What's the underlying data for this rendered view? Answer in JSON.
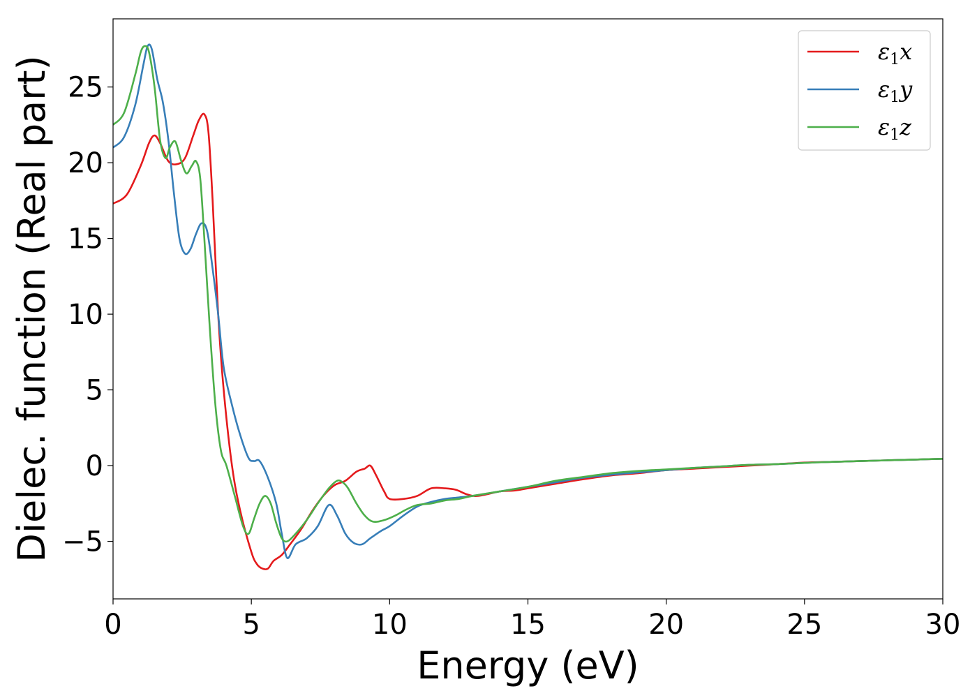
{
  "chart_data": {
    "type": "line",
    "title": "",
    "xlabel": "Energy (eV)",
    "ylabel": "Dielec. function (Real part)",
    "xlim": [
      0,
      30
    ],
    "ylim": [
      -8.8,
      29.5
    ],
    "xticks": [
      0,
      5,
      10,
      15,
      20,
      25,
      30
    ],
    "xtick_labels": [
      "0",
      "5",
      "10",
      "15",
      "20",
      "25",
      "30"
    ],
    "yticks": [
      -5,
      0,
      5,
      10,
      15,
      20,
      25
    ],
    "ytick_labels": [
      "−5",
      "0",
      "5",
      "10",
      "15",
      "20",
      "25"
    ],
    "grid": false,
    "legend_position": "top-right",
    "series": [
      {
        "name": "ε1x",
        "legend_base": "ε",
        "legend_sub": "1",
        "legend_var": "x",
        "color": "#e41a1c",
        "x": [
          0,
          0.5,
          1.0,
          1.3,
          1.5,
          1.7,
          2.0,
          2.3,
          2.6,
          2.9,
          3.1,
          3.3,
          3.45,
          3.6,
          3.8,
          4.0,
          4.3,
          4.6,
          5.0,
          5.2,
          5.4,
          5.6,
          5.8,
          6.1,
          6.4,
          6.8,
          7.2,
          7.6,
          8.0,
          8.4,
          8.8,
          9.1,
          9.3,
          9.5,
          9.8,
          10.0,
          10.5,
          11.0,
          11.5,
          12.0,
          12.4,
          12.8,
          13.2,
          14.0,
          14.5,
          15.0,
          16.0,
          17.0,
          18.0,
          19.0,
          20.0,
          21.0,
          22.0,
          23.0,
          24.0,
          25.0,
          26.0,
          27.0,
          28.0,
          29.0,
          30.0
        ],
        "y": [
          17.3,
          17.9,
          19.8,
          21.3,
          21.8,
          21.3,
          20.1,
          19.9,
          20.3,
          21.8,
          22.8,
          23.2,
          22.0,
          17.5,
          10.0,
          5.0,
          0.0,
          -3.0,
          -5.7,
          -6.5,
          -6.8,
          -6.8,
          -6.3,
          -5.9,
          -5.2,
          -4.2,
          -3.0,
          -2.0,
          -1.3,
          -1.0,
          -0.4,
          -0.2,
          0.0,
          -0.6,
          -1.7,
          -2.2,
          -2.2,
          -2.0,
          -1.5,
          -1.5,
          -1.6,
          -1.9,
          -2.0,
          -1.7,
          -1.65,
          -1.5,
          -1.2,
          -0.9,
          -0.65,
          -0.5,
          -0.3,
          -0.2,
          -0.1,
          0.0,
          0.1,
          0.2,
          0.25,
          0.3,
          0.35,
          0.4,
          0.45
        ]
      },
      {
        "name": "ε1y",
        "legend_base": "ε",
        "legend_sub": "1",
        "legend_var": "y",
        "color": "#377eb8",
        "x": [
          0,
          0.4,
          0.8,
          1.1,
          1.25,
          1.4,
          1.6,
          1.8,
          2.0,
          2.2,
          2.4,
          2.6,
          2.8,
          3.0,
          3.2,
          3.4,
          3.6,
          3.8,
          4.0,
          4.3,
          4.6,
          4.9,
          5.1,
          5.3,
          5.6,
          5.9,
          6.1,
          6.3,
          6.6,
          7.0,
          7.4,
          7.8,
          8.1,
          8.4,
          8.7,
          9.0,
          9.3,
          9.7,
          10.0,
          10.5,
          11.0,
          11.5,
          12.0,
          12.5,
          13.0,
          14.0,
          15.0,
          16.0,
          17.0,
          18.0,
          19.0,
          20.0,
          21.0,
          22.0,
          23.0,
          24.0,
          25.0,
          26.0,
          27.0,
          28.0,
          29.0,
          30.0
        ],
        "y": [
          21.0,
          21.7,
          23.8,
          26.5,
          27.7,
          27.5,
          25.5,
          24.0,
          21.5,
          18.0,
          15.0,
          14.0,
          14.3,
          15.3,
          16.0,
          15.5,
          13.0,
          10.0,
          6.5,
          4.0,
          2.0,
          0.5,
          0.3,
          0.3,
          -0.8,
          -2.5,
          -4.5,
          -6.1,
          -5.2,
          -4.8,
          -4.0,
          -2.6,
          -3.3,
          -4.5,
          -5.1,
          -5.2,
          -4.8,
          -4.3,
          -4.0,
          -3.3,
          -2.7,
          -2.4,
          -2.2,
          -2.1,
          -2.0,
          -1.7,
          -1.4,
          -1.1,
          -0.8,
          -0.6,
          -0.45,
          -0.3,
          -0.15,
          -0.05,
          0.05,
          0.1,
          0.18,
          0.25,
          0.3,
          0.35,
          0.4,
          0.45
        ]
      },
      {
        "name": "ε1z",
        "legend_base": "ε",
        "legend_sub": "1",
        "legend_var": "z",
        "color": "#4daf4a",
        "x": [
          0,
          0.4,
          0.8,
          1.0,
          1.15,
          1.3,
          1.5,
          1.7,
          1.9,
          2.05,
          2.25,
          2.45,
          2.65,
          2.85,
          3.0,
          3.15,
          3.3,
          3.5,
          3.7,
          3.9,
          4.1,
          4.4,
          4.7,
          4.9,
          5.1,
          5.3,
          5.5,
          5.7,
          5.9,
          6.1,
          6.3,
          6.6,
          7.0,
          7.4,
          7.8,
          8.1,
          8.3,
          8.5,
          8.8,
          9.1,
          9.4,
          9.8,
          10.2,
          10.6,
          11.0,
          11.5,
          12.0,
          12.5,
          13.0,
          14.0,
          15.0,
          16.0,
          17.0,
          18.0,
          19.0,
          20.0,
          21.0,
          22.0,
          23.0,
          24.0,
          25.0,
          26.0,
          27.0,
          28.0,
          29.0,
          30.0
        ],
        "y": [
          22.5,
          23.3,
          25.8,
          27.3,
          27.7,
          27.3,
          25.0,
          21.5,
          20.3,
          21.0,
          21.4,
          20.2,
          19.3,
          19.8,
          20.1,
          19.0,
          15.0,
          9.0,
          4.0,
          1.0,
          0.0,
          -2.0,
          -4.0,
          -4.5,
          -3.5,
          -2.5,
          -2.0,
          -2.5,
          -3.8,
          -4.8,
          -5.0,
          -4.5,
          -3.6,
          -2.5,
          -1.5,
          -1.0,
          -1.1,
          -1.5,
          -2.5,
          -3.3,
          -3.7,
          -3.6,
          -3.3,
          -2.9,
          -2.6,
          -2.5,
          -2.3,
          -2.2,
          -2.0,
          -1.7,
          -1.4,
          -1.0,
          -0.75,
          -0.5,
          -0.35,
          -0.25,
          -0.15,
          -0.05,
          0.05,
          0.1,
          0.18,
          0.25,
          0.3,
          0.35,
          0.4,
          0.45
        ]
      }
    ]
  }
}
